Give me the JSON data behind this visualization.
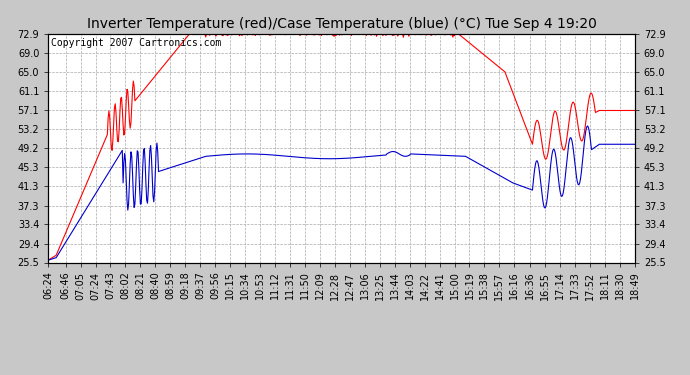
{
  "title": "Inverter Temperature (red)/Case Temperature (blue) (°C) Tue Sep 4 19:20",
  "copyright": "Copyright 2007 Cartronics.com",
  "y_ticks": [
    25.5,
    29.4,
    33.4,
    37.3,
    41.3,
    45.3,
    49.2,
    53.2,
    57.1,
    61.1,
    65.0,
    69.0,
    72.9
  ],
  "x_labels": [
    "06:24",
    "06:46",
    "07:05",
    "07:24",
    "07:43",
    "08:02",
    "08:21",
    "08:40",
    "08:59",
    "09:18",
    "09:37",
    "09:56",
    "10:15",
    "10:34",
    "10:53",
    "11:12",
    "11:31",
    "11:50",
    "12:09",
    "12:28",
    "12:47",
    "13:06",
    "13:25",
    "13:44",
    "14:03",
    "14:22",
    "14:41",
    "15:00",
    "15:19",
    "15:38",
    "15:57",
    "16:16",
    "16:36",
    "16:55",
    "17:14",
    "17:33",
    "17:52",
    "18:11",
    "18:30",
    "18:49"
  ],
  "x_label_minutes": [
    0,
    22,
    41,
    60,
    79,
    98,
    117,
    136,
    155,
    174,
    193,
    212,
    231,
    250,
    269,
    288,
    307,
    326,
    345,
    364,
    383,
    402,
    421,
    440,
    459,
    478,
    497,
    516,
    535,
    554,
    573,
    592,
    612,
    631,
    650,
    669,
    688,
    707,
    726,
    745
  ],
  "ylim": [
    25.5,
    72.9
  ],
  "xlim": [
    0,
    745
  ],
  "bg_color": "#c8c8c8",
  "plot_bg": "#ffffff",
  "red_color": "#ff0000",
  "blue_color": "#0000cc",
  "title_fontsize": 10,
  "copyright_fontsize": 7,
  "tick_fontsize": 7,
  "grid_color": "#aaaaaa",
  "grid_style": "--",
  "grid_lw": 0.5
}
